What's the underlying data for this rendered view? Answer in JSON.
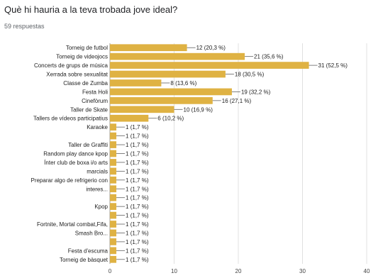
{
  "header": {
    "question": "Què hi hauria a la teva trobada jove ideal?",
    "responses": "59 respuestas"
  },
  "chart_data": {
    "type": "bar",
    "orientation": "horizontal",
    "bar_color": "#dfb243",
    "grid": true,
    "xlim": [
      0,
      40
    ],
    "xticks": [
      0,
      10,
      20,
      30,
      40
    ],
    "rows": [
      {
        "label": [
          "Torneig de futbol"
        ],
        "value": 12,
        "text": "12 (20,3 %)"
      },
      {
        "label": [
          "Torneig de videojocs"
        ],
        "value": 21,
        "text": "21 (35,6 %)"
      },
      {
        "label": [
          "Concerts de grups de música"
        ],
        "value": 31,
        "text": "31 (52,5 %)"
      },
      {
        "label": [
          "Xerrada sobre sexualitat"
        ],
        "value": 18,
        "text": "18 (30,5 %)"
      },
      {
        "label": [
          "Classe de Zumba"
        ],
        "value": 8,
        "text": "8 (13,6 %)"
      },
      {
        "label": [
          "Festa Holi"
        ],
        "value": 19,
        "text": "19 (32,2 %)"
      },
      {
        "label": [
          "Cinefòrum"
        ],
        "value": 16,
        "text": "16 (27,1 %)"
      },
      {
        "label": [
          "Taller de Skate"
        ],
        "value": 10,
        "text": "10 (16,9 %)"
      },
      {
        "label": [
          "Tallers de vídeos participatius"
        ],
        "value": 6,
        "text": "6 (10,2 %)"
      },
      {
        "label": [
          "Karaoke"
        ],
        "value": 1,
        "text": "1 (1,7 %)"
      },
      {
        "label": [],
        "value": 1,
        "text": "1 (1,7 %)"
      },
      {
        "label": [
          "Taller de Graffiti"
        ],
        "value": 1,
        "text": "1 (1,7 %)"
      },
      {
        "label": [
          "Random play dance kpop"
        ],
        "value": 1,
        "text": "1 (1,7 %)"
      },
      {
        "label": [
          "Ínter club de boxa i/o arts"
        ],
        "value": 1,
        "text": "1 (1,7 %)"
      },
      {
        "label": [
          "marcials"
        ],
        "value": 1,
        "text": "1 (1,7 %)"
      },
      {
        "label": [
          "Preparar algo de refrigerio con"
        ],
        "value": 1,
        "text": "1 (1,7 %)"
      },
      {
        "label": [
          "interes..."
        ],
        "value": 1,
        "text": "1 (1,7 %)"
      },
      {
        "label": [],
        "value": 1,
        "text": "1 (1,7 %)"
      },
      {
        "label": [
          "Kpop"
        ],
        "value": 1,
        "text": "1 (1,7 %)"
      },
      {
        "label": [],
        "value": 1,
        "text": "1 (1,7 %)"
      },
      {
        "label": [
          "Fortnite, Mortal combat,Fifa,"
        ],
        "value": 1,
        "text": "1 (1,7 %)"
      },
      {
        "label": [
          "Smash Bro..."
        ],
        "value": 1,
        "text": "1 (1,7 %)"
      },
      {
        "label": [],
        "value": 1,
        "text": "1 (1,7 %)"
      },
      {
        "label": [
          "Festa d'escuma"
        ],
        "value": 1,
        "text": "1 (1,7 %)"
      },
      {
        "label": [
          "Torneig de bàsquet"
        ],
        "value": 1,
        "text": "1 (1,7 %)"
      }
    ]
  }
}
